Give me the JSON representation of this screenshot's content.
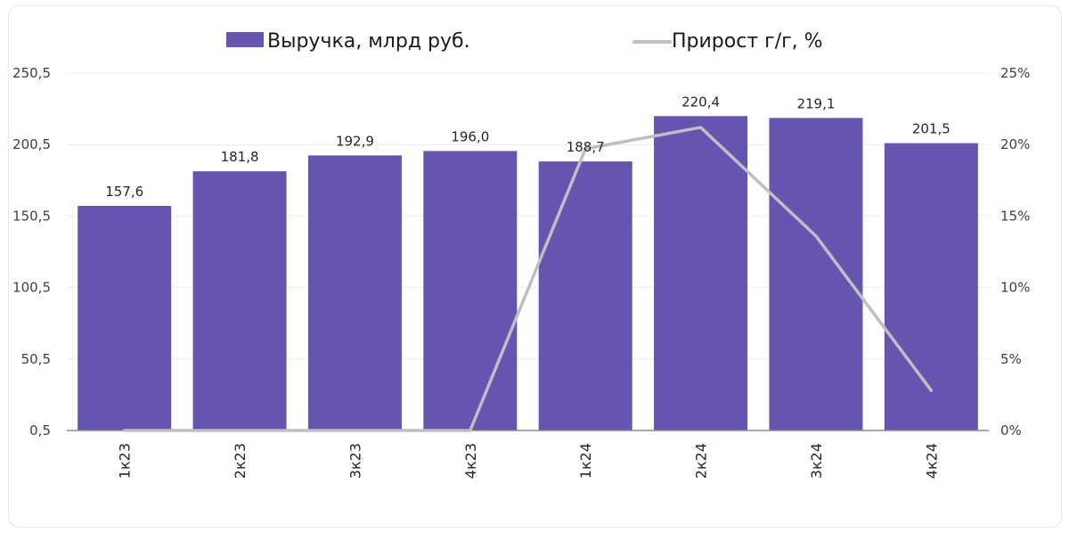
{
  "chart_data": {
    "type": "bar",
    "title": "",
    "categories": [
      "1к23",
      "2к23",
      "3к23",
      "4к23",
      "1к24",
      "2к24",
      "3к24",
      "4к24"
    ],
    "series": [
      {
        "name": "Выручка, млрд руб.",
        "type": "bar",
        "axis": "left",
        "color": "#6554b0",
        "values": [
          157.6,
          181.8,
          192.9,
          196.0,
          188.7,
          220.4,
          219.1,
          201.5
        ],
        "labels": [
          "157,6",
          "181,8",
          "192,9",
          "196,0",
          "188,7",
          "220,4",
          "219,1",
          "201,5"
        ]
      },
      {
        "name": "Прирост г/г, %",
        "type": "line",
        "axis": "right",
        "color": "#bfbfbf",
        "values": [
          0,
          0,
          0,
          0,
          19.7,
          21.2,
          13.6,
          2.8
        ]
      }
    ],
    "left_axis": {
      "ticks": [
        "0,5",
        "50,5",
        "100,5",
        "150,5",
        "200,5",
        "250,5"
      ],
      "ylim": [
        0.5,
        250.5
      ]
    },
    "right_axis": {
      "ticks": [
        "0%",
        "5%",
        "10%",
        "15%",
        "20%",
        "25%"
      ],
      "ylim": [
        0,
        25
      ]
    },
    "xlabel": "",
    "ylabel": "",
    "grid": true,
    "legend_position": "top",
    "x_label_rotation": -90
  },
  "legend": {
    "bar_label": "Выручка, млрд руб.",
    "line_label": "Прирост г/г, %"
  }
}
